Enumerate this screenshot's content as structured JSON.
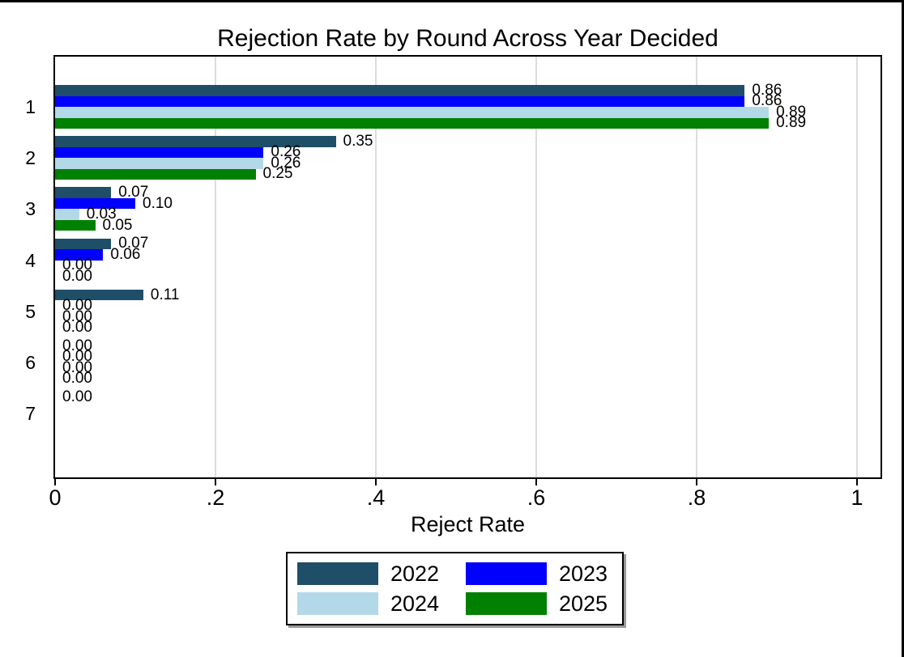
{
  "chart_data": {
    "type": "bar",
    "orientation": "horizontal",
    "title": "Rejection Rate by Round Across Year Decided",
    "xlabel": "Reject Rate",
    "ylabel": "",
    "categories": [
      "1",
      "2",
      "3",
      "4",
      "5",
      "6",
      "7"
    ],
    "series": [
      {
        "name": "2022",
        "color": "#1f4e68",
        "values": [
          0.86,
          0.35,
          0.07,
          0.07,
          0.11,
          0.0,
          0.0
        ]
      },
      {
        "name": "2023",
        "color": "#0000ff",
        "values": [
          0.86,
          0.26,
          0.1,
          0.06,
          0.0,
          0.0,
          null
        ]
      },
      {
        "name": "2024",
        "color": "#b3d9e9",
        "values": [
          0.89,
          0.26,
          0.03,
          0.0,
          0.0,
          0.0,
          null
        ]
      },
      {
        "name": "2025",
        "color": "#008000",
        "values": [
          0.89,
          0.25,
          0.05,
          0.0,
          0.0,
          0.0,
          null
        ]
      }
    ],
    "bar_labels_shown": true,
    "bar_label_decimals": 2,
    "xlim": [
      0,
      1.03
    ],
    "xticks": [
      0,
      0.2,
      0.4,
      0.6,
      0.8,
      1
    ],
    "xtick_labels": [
      "0",
      ".2",
      ".4",
      ".6",
      ".8",
      "1"
    ],
    "grid": true,
    "gridline_color": "#dcdcdc",
    "axis_color": "#000000",
    "legend_position": "bottom",
    "legend_order": [
      "2022",
      "2023",
      "2024",
      "2025"
    ]
  }
}
